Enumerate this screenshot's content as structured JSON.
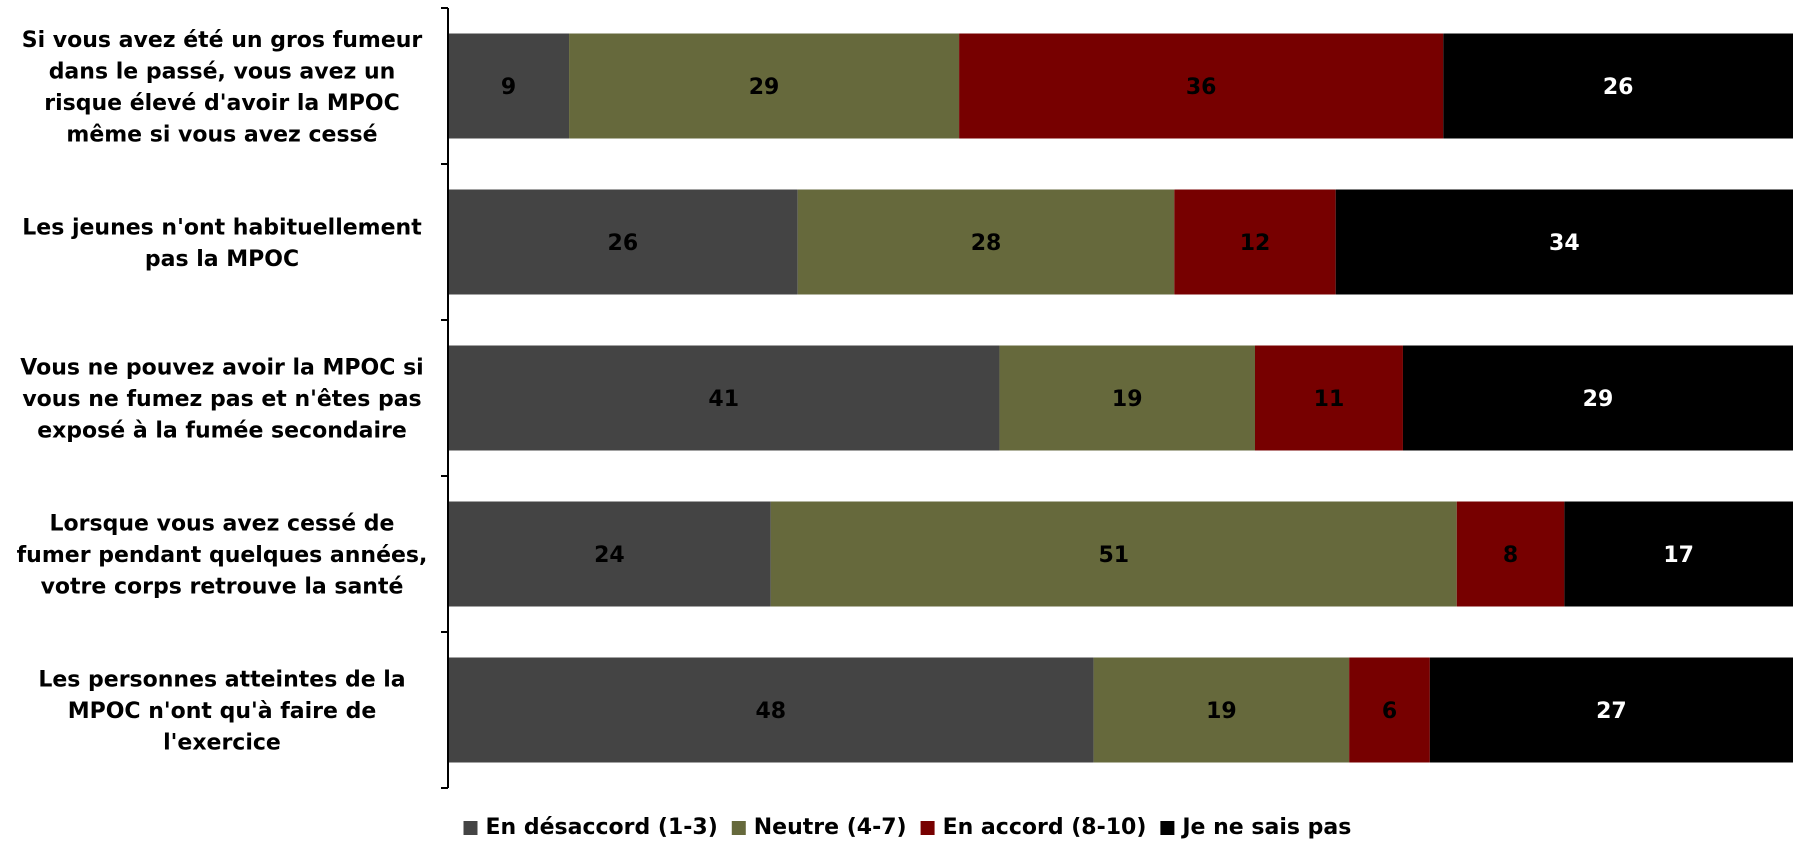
{
  "chart_data": {
    "type": "bar",
    "orientation": "horizontal",
    "stacked": true,
    "categories": [
      "Si vous avez été un gros fumeur dans le passé, vous avez un risque élevé d'avoir la MPOC même si vous avez cessé",
      "Les jeunes n'ont habituellement pas la MPOC",
      "Vous ne pouvez avoir la MPOC si vous ne fumez pas et n'êtes pas exposé à la fumée secondaire",
      "Lorsque vous avez cessé de fumer pendant quelques années, votre corps retrouve la santé",
      "Les personnes atteintes de la MPOC n'ont qu'à faire de l'exercice"
    ],
    "category_lines": [
      [
        "Si vous avez été un gros fumeur",
        "dans le passé, vous avez un",
        "risque élevé d'avoir la MPOC",
        "même si vous avez cessé"
      ],
      [
        "Les jeunes n'ont habituellement",
        "pas la MPOC"
      ],
      [
        "Vous ne pouvez avoir la MPOC si",
        "vous ne fumez pas et n'êtes pas",
        "exposé à la fumée secondaire"
      ],
      [
        "Lorsque vous avez cessé de",
        "fumer pendant quelques années,",
        "votre corps retrouve la santé"
      ],
      [
        "Les personnes atteintes de la",
        "MPOC n'ont qu'à faire de",
        "l'exercice"
      ]
    ],
    "series": [
      {
        "name": "En désaccord (1-3)",
        "color": "#444444",
        "label_color": "#000000",
        "values": [
          9,
          26,
          41,
          24,
          48
        ]
      },
      {
        "name": "Neutre (4-7)",
        "color": "#66693c",
        "label_color": "#000000",
        "values": [
          29,
          28,
          19,
          51,
          19
        ]
      },
      {
        "name": "En accord (8-10)",
        "color": "#770000",
        "label_color": "#000000",
        "values": [
          36,
          12,
          11,
          8,
          6
        ]
      },
      {
        "name": "Je ne sais pas",
        "color": "#000000",
        "label_color": "#ffffff",
        "values": [
          26,
          34,
          29,
          17,
          27
        ]
      }
    ],
    "xlim": [
      0,
      100
    ],
    "grid": false,
    "legend_position": "bottom"
  }
}
